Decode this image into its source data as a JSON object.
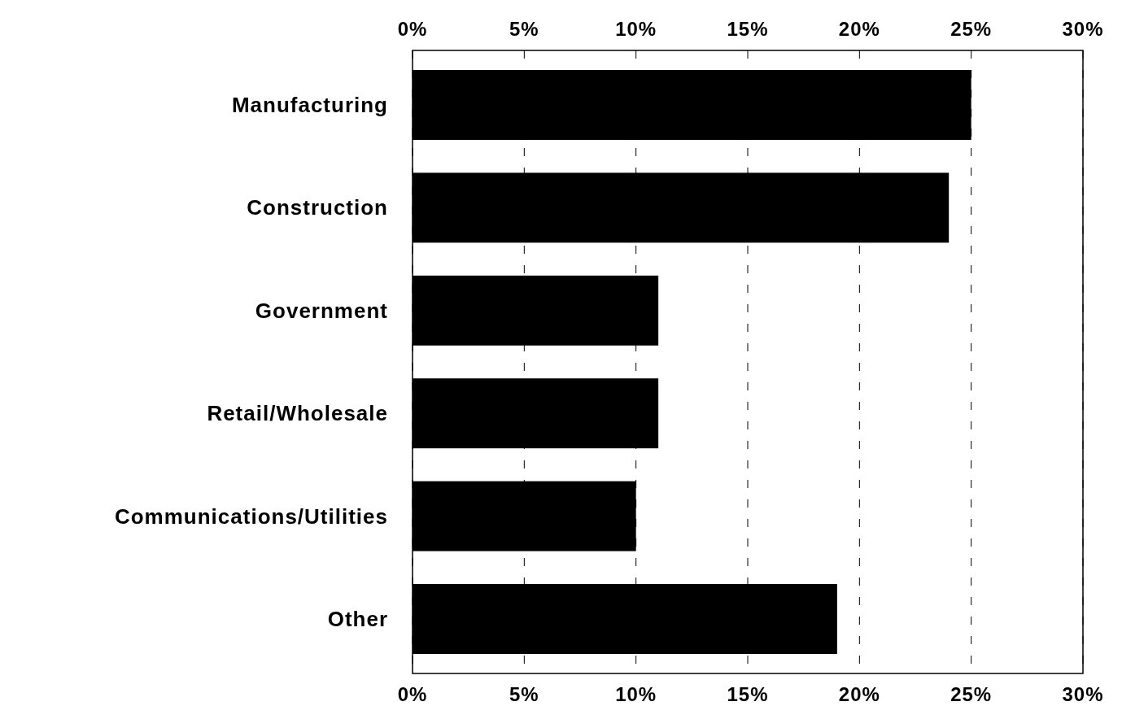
{
  "chart_data": {
    "type": "bar",
    "orientation": "horizontal",
    "categories": [
      "Manufacturing",
      "Construction",
      "Government",
      "Retail/Wholesale",
      "Communications/Utilities",
      "Other"
    ],
    "values": [
      25,
      24,
      11,
      11,
      10,
      19
    ],
    "color": "#000000",
    "xlim": [
      0,
      30
    ],
    "xticks": [
      {
        "value": 0,
        "label": "0%"
      },
      {
        "value": 5,
        "label": "5%"
      },
      {
        "value": 10,
        "label": "10%"
      },
      {
        "value": 15,
        "label": "15%"
      },
      {
        "value": 20,
        "label": "20%"
      },
      {
        "value": 25,
        "label": "25%"
      },
      {
        "value": 30,
        "label": "30%"
      }
    ],
    "x2lim": [
      0,
      30
    ],
    "x2ticks": [
      {
        "value": 0,
        "label": "0%"
      },
      {
        "value": 5,
        "label": "5%"
      },
      {
        "value": 10,
        "label": "10%"
      },
      {
        "value": 15,
        "label": "15%"
      },
      {
        "value": 20,
        "label": "20%"
      },
      {
        "value": 25,
        "label": "25%"
      },
      {
        "value": 30,
        "label": "30%"
      }
    ],
    "grid": "x"
  }
}
